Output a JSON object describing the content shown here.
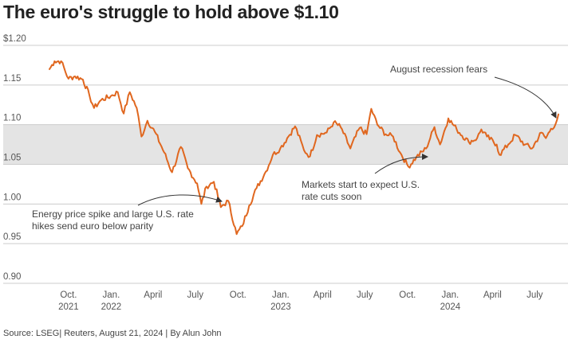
{
  "title": "The euro's struggle to hold above $1.10",
  "source": "Source: LSEG| Reuters, August 21, 2024 | By Alun John",
  "colors": {
    "line": "#e0671f",
    "band": "#e4e4e4",
    "grid": "#cccccc",
    "arrow": "#333333"
  },
  "chart_data": {
    "type": "line",
    "title": "The euro's struggle to hold above $1.10",
    "xlabel": "",
    "ylabel": "",
    "ylim": [
      0.9,
      1.2
    ],
    "y_ticks": [
      {
        "value": 1.2,
        "label": "$1.20"
      },
      {
        "value": 1.15,
        "label": "1.15"
      },
      {
        "value": 1.1,
        "label": "1.10"
      },
      {
        "value": 1.05,
        "label": "1.05"
      },
      {
        "value": 1.0,
        "label": "1.00"
      },
      {
        "value": 0.95,
        "label": "0.95"
      },
      {
        "value": 0.9,
        "label": "0.90"
      }
    ],
    "x_ticks": [
      {
        "date": "2021-10-01",
        "month": "Oct.",
        "year": "2021"
      },
      {
        "date": "2022-01-01",
        "month": "Jan.",
        "year": "2022"
      },
      {
        "date": "2022-04-01",
        "month": "April",
        "year": ""
      },
      {
        "date": "2022-07-01",
        "month": "July",
        "year": ""
      },
      {
        "date": "2022-10-01",
        "month": "Oct.",
        "year": ""
      },
      {
        "date": "2023-01-01",
        "month": "Jan.",
        "year": "2023"
      },
      {
        "date": "2023-04-01",
        "month": "April",
        "year": ""
      },
      {
        "date": "2023-07-01",
        "month": "July",
        "year": ""
      },
      {
        "date": "2023-10-01",
        "month": "Oct.",
        "year": ""
      },
      {
        "date": "2024-01-01",
        "month": "Jan.",
        "year": "2024"
      },
      {
        "date": "2024-04-01",
        "month": "April",
        "year": ""
      },
      {
        "date": "2024-07-01",
        "month": "July",
        "year": ""
      }
    ],
    "band": [
      1.05,
      1.1
    ],
    "series": [
      {
        "values": [
          [
            "2021-08-21",
            1.17
          ],
          [
            "2021-09-01",
            1.18
          ],
          [
            "2021-09-15",
            1.18
          ],
          [
            "2021-10-01",
            1.158
          ],
          [
            "2021-10-15",
            1.161
          ],
          [
            "2021-11-01",
            1.157
          ],
          [
            "2021-11-15",
            1.137
          ],
          [
            "2021-11-25",
            1.121
          ],
          [
            "2021-12-10",
            1.131
          ],
          [
            "2021-12-31",
            1.136
          ],
          [
            "2022-01-15",
            1.141
          ],
          [
            "2022-01-28",
            1.114
          ],
          [
            "2022-02-10",
            1.141
          ],
          [
            "2022-02-25",
            1.121
          ],
          [
            "2022-03-07",
            1.085
          ],
          [
            "2022-03-20",
            1.105
          ],
          [
            "2022-04-05",
            1.091
          ],
          [
            "2022-04-25",
            1.065
          ],
          [
            "2022-05-12",
            1.04
          ],
          [
            "2022-05-31",
            1.072
          ],
          [
            "2022-06-15",
            1.045
          ],
          [
            "2022-07-05",
            1.026
          ],
          [
            "2022-07-14",
            1.0
          ],
          [
            "2022-07-25",
            1.022
          ],
          [
            "2022-08-10",
            1.028
          ],
          [
            "2022-08-25",
            0.996
          ],
          [
            "2022-09-10",
            1.004
          ],
          [
            "2022-09-28",
            0.962
          ],
          [
            "2022-10-10",
            0.972
          ],
          [
            "2022-10-25",
            0.998
          ],
          [
            "2022-11-10",
            1.02
          ],
          [
            "2022-11-30",
            1.041
          ],
          [
            "2022-12-15",
            1.062
          ],
          [
            "2022-12-31",
            1.07
          ],
          [
            "2023-01-15",
            1.083
          ],
          [
            "2023-02-01",
            1.098
          ],
          [
            "2023-02-20",
            1.068
          ],
          [
            "2023-03-05",
            1.06
          ],
          [
            "2023-03-20",
            1.087
          ],
          [
            "2023-04-10",
            1.09
          ],
          [
            "2023-04-25",
            1.103
          ],
          [
            "2023-05-10",
            1.097
          ],
          [
            "2023-05-31",
            1.07
          ],
          [
            "2023-06-20",
            1.096
          ],
          [
            "2023-07-05",
            1.088
          ],
          [
            "2023-07-15",
            1.12
          ],
          [
            "2023-07-28",
            1.1
          ],
          [
            "2023-08-15",
            1.088
          ],
          [
            "2023-08-31",
            1.085
          ],
          [
            "2023-09-15",
            1.065
          ],
          [
            "2023-10-03",
            1.047
          ],
          [
            "2023-10-20",
            1.059
          ],
          [
            "2023-11-10",
            1.07
          ],
          [
            "2023-11-28",
            1.097
          ],
          [
            "2023-12-10",
            1.075
          ],
          [
            "2023-12-28",
            1.108
          ],
          [
            "2024-01-15",
            1.094
          ],
          [
            "2024-02-10",
            1.078
          ],
          [
            "2024-02-28",
            1.083
          ],
          [
            "2024-03-08",
            1.094
          ],
          [
            "2024-03-20",
            1.085
          ],
          [
            "2024-04-10",
            1.075
          ],
          [
            "2024-04-16",
            1.062
          ],
          [
            "2024-05-05",
            1.075
          ],
          [
            "2024-05-20",
            1.087
          ],
          [
            "2024-06-10",
            1.075
          ],
          [
            "2024-06-25",
            1.07
          ],
          [
            "2024-07-15",
            1.09
          ],
          [
            "2024-07-25",
            1.083
          ],
          [
            "2024-08-05",
            1.095
          ],
          [
            "2024-08-15",
            1.101
          ],
          [
            "2024-08-21",
            1.113
          ]
        ]
      }
    ],
    "annotations": [
      {
        "lines": [
          "August recession fears"
        ]
      },
      {
        "lines": [
          "Markets start to expect U.S.",
          "rate cuts soon"
        ]
      },
      {
        "lines": [
          "Energy price spike and large U.S. rate",
          "hikes send euro below parity"
        ]
      }
    ]
  }
}
